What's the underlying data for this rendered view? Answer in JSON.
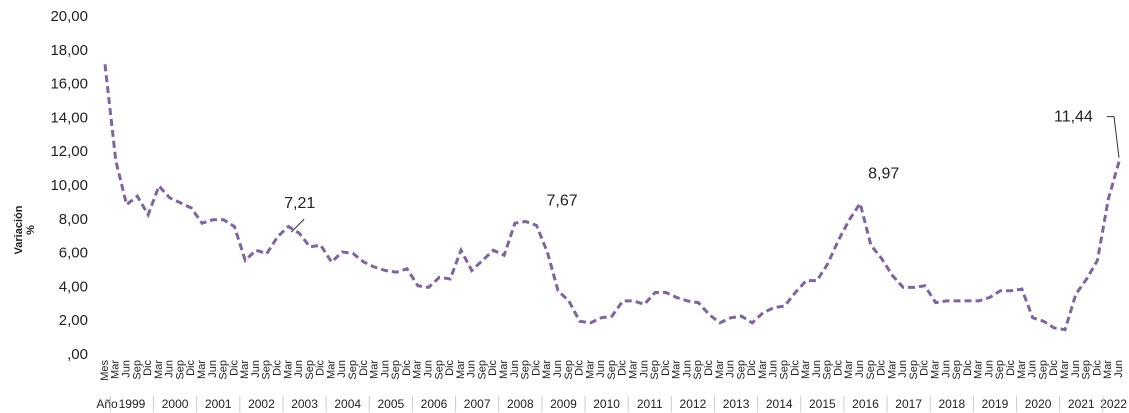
{
  "chart_data": {
    "type": "line",
    "y_label": [
      "Variación",
      "%"
    ],
    "color": "#8064a2",
    "dashed": true,
    "ylim": [
      0,
      20
    ],
    "yticks": [
      {
        "value": 0,
        "label": ",00"
      },
      {
        "value": 2,
        "label": "2,00"
      },
      {
        "value": 4,
        "label": "4,00"
      },
      {
        "value": 6,
        "label": "6,00"
      },
      {
        "value": 8,
        "label": "8,00"
      },
      {
        "value": 10,
        "label": "10,00"
      },
      {
        "value": 12,
        "label": "12,00"
      },
      {
        "value": 14,
        "label": "14,00"
      },
      {
        "value": 16,
        "label": "16,00"
      },
      {
        "value": 18,
        "label": "18,00"
      },
      {
        "value": 20,
        "label": "20,00"
      }
    ],
    "categories": [
      "Mes",
      "Mar",
      "Jun",
      "Sep",
      "Dic",
      "Mar",
      "Jun",
      "Sep",
      "Dic",
      "Mar",
      "Jun",
      "Sep",
      "Dic",
      "Mar",
      "Jun",
      "Sep",
      "Dic",
      "Mar",
      "Jun",
      "Sep",
      "Dic",
      "Mar",
      "Jun",
      "Sep",
      "Dic",
      "Mar",
      "Jun",
      "Sep",
      "Dic",
      "Mar",
      "Jun",
      "Sep",
      "Dic",
      "Mar",
      "Jun",
      "Sep",
      "Dic",
      "Mar",
      "Jun",
      "Sep",
      "Dic",
      "Mar",
      "Jun",
      "Sep",
      "Dic",
      "Mar",
      "Jun",
      "Sep",
      "Dic",
      "Mar",
      "Jun",
      "Sep",
      "Dic",
      "Mar",
      "Jun",
      "Sep",
      "Dic",
      "Mar",
      "Jun",
      "Sep",
      "Dic",
      "Mar",
      "Jun",
      "Sep",
      "Dic",
      "Mar",
      "Jun",
      "Sep",
      "Dic",
      "Mar",
      "Jun",
      "Sep",
      "Dic",
      "Mar",
      "Jun",
      "Sep",
      "Dic",
      "Mar",
      "Jun",
      "Sep",
      "Dic",
      "Mar",
      "Jun",
      "Sep",
      "Dic",
      "Mar",
      "Jun",
      "Sep",
      "Dic",
      "Mar",
      "Jun",
      "Sep",
      "Dic",
      "Mar",
      "Jun"
    ],
    "year_groups": [
      {
        "label": "Año",
        "count": 1
      },
      {
        "label": "1999",
        "count": 4
      },
      {
        "label": "2000",
        "count": 4
      },
      {
        "label": "2001",
        "count": 4
      },
      {
        "label": "2002",
        "count": 4
      },
      {
        "label": "2003",
        "count": 4
      },
      {
        "label": "2004",
        "count": 4
      },
      {
        "label": "2005",
        "count": 4
      },
      {
        "label": "2006",
        "count": 4
      },
      {
        "label": "2007",
        "count": 4
      },
      {
        "label": "2008",
        "count": 4
      },
      {
        "label": "2009",
        "count": 4
      },
      {
        "label": "2010",
        "count": 4
      },
      {
        "label": "2011",
        "count": 4
      },
      {
        "label": "2012",
        "count": 4
      },
      {
        "label": "2013",
        "count": 4
      },
      {
        "label": "2014",
        "count": 4
      },
      {
        "label": "2015",
        "count": 4
      },
      {
        "label": "2016",
        "count": 4
      },
      {
        "label": "2017",
        "count": 4
      },
      {
        "label": "2018",
        "count": 4
      },
      {
        "label": "2019",
        "count": 4
      },
      {
        "label": "2020",
        "count": 4
      },
      {
        "label": "2021",
        "count": 4
      },
      {
        "label": "2022",
        "count": 2
      }
    ],
    "values": [
      17.2,
      11.5,
      8.9,
      9.4,
      8.3,
      10.0,
      9.3,
      9.0,
      8.7,
      7.8,
      8.0,
      8.0,
      7.6,
      5.6,
      6.2,
      6.0,
      7.0,
      7.6,
      7.21,
      6.4,
      6.5,
      5.5,
      6.1,
      6.0,
      5.5,
      5.2,
      5.0,
      4.9,
      5.1,
      4.1,
      4.0,
      4.6,
      4.5,
      6.2,
      5.0,
      5.6,
      6.2,
      5.9,
      7.8,
      7.9,
      7.67,
      6.1,
      3.8,
      3.2,
      2.0,
      1.9,
      2.2,
      2.3,
      3.2,
      3.2,
      3.0,
      3.7,
      3.7,
      3.4,
      3.2,
      3.1,
      2.4,
      1.9,
      2.2,
      2.3,
      1.9,
      2.5,
      2.8,
      2.9,
      3.7,
      4.4,
      4.4,
      5.4,
      6.8,
      8.0,
      8.97,
      6.5,
      5.7,
      4.7,
      4.0,
      4.0,
      4.1,
      3.1,
      3.2,
      3.2,
      3.2,
      3.2,
      3.4,
      3.8,
      3.8,
      3.9,
      2.2,
      2.0,
      1.6,
      1.5,
      3.6,
      4.5,
      5.6,
      9.2,
      11.44
    ],
    "value_labels": [
      null,
      null,
      null,
      null,
      null,
      null,
      null,
      null,
      null,
      null,
      null,
      null,
      null,
      null,
      null,
      null,
      null,
      null,
      "7,21",
      null,
      null,
      null,
      null,
      null,
      null,
      null,
      null,
      null,
      null,
      null,
      null,
      null,
      null,
      null,
      null,
      null,
      null,
      null,
      null,
      null,
      "7,67",
      null,
      null,
      null,
      null,
      null,
      null,
      null,
      null,
      null,
      null,
      null,
      null,
      null,
      null,
      null,
      null,
      null,
      null,
      null,
      null,
      null,
      null,
      null,
      null,
      null,
      null,
      null,
      null,
      null,
      "8,97",
      null,
      null,
      null,
      null,
      null,
      null,
      null,
      null,
      null,
      null,
      null,
      null,
      null,
      null,
      null,
      null,
      null,
      null,
      null,
      null,
      null,
      null,
      null,
      "11,44"
    ]
  }
}
